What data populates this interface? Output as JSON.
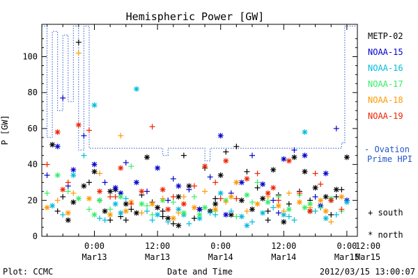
{
  "chart_data": {
    "type": "scatter",
    "title": "Hemispheric Power [GW]",
    "xlabel": "Date and Time",
    "ylabel": "P [GW]",
    "ylim": [
      0,
      118
    ],
    "xlim": [
      -10,
      50
    ],
    "x_unit": "hours relative to 2012-03-13 00:00 UT",
    "y_ticks": [
      0,
      20,
      40,
      60,
      80,
      100
    ],
    "x_ticks": [
      {
        "x": 0,
        "line1": "0:00",
        "line2": "Mar13"
      },
      {
        "x": 12,
        "line1": "12:00",
        "line2": "Mar13"
      },
      {
        "x": 24,
        "line1": "0:00",
        "line2": "Mar14"
      },
      {
        "x": 36,
        "line1": "12:00",
        "line2": "Mar14"
      },
      {
        "x": 48,
        "line1": "0:00",
        "line2": "Mar15"
      },
      {
        "x": 60,
        "line1": "12:00",
        "line2": "Mar15"
      }
    ],
    "grid": false,
    "legend_position": "right",
    "series": [
      {
        "name": "METP-02",
        "color": "#000000",
        "points": [
          [
            -8,
            51
          ],
          [
            -6,
            22
          ],
          [
            -5,
            9
          ],
          [
            -3,
            108
          ],
          [
            -2,
            28
          ],
          [
            -1,
            30
          ],
          [
            0,
            36
          ],
          [
            1,
            20
          ],
          [
            2,
            14
          ],
          [
            3,
            9
          ],
          [
            4,
            26
          ],
          [
            5,
            11
          ],
          [
            6,
            18
          ],
          [
            7,
            15
          ],
          [
            8,
            13
          ],
          [
            9,
            23
          ],
          [
            10,
            44
          ],
          [
            11,
            19
          ],
          [
            12,
            16
          ],
          [
            13,
            11
          ],
          [
            14,
            10
          ],
          [
            15,
            7
          ],
          [
            16,
            6
          ],
          [
            17,
            45
          ],
          [
            18,
            28
          ],
          [
            19,
            10
          ],
          [
            20,
            15
          ],
          [
            21,
            38
          ],
          [
            22,
            14
          ],
          [
            23,
            21
          ],
          [
            24,
            34
          ],
          [
            25,
            47
          ],
          [
            26,
            12
          ],
          [
            27,
            50
          ],
          [
            28,
            20
          ],
          [
            29,
            36
          ],
          [
            30,
            15
          ],
          [
            31,
            27
          ],
          [
            32,
            21
          ],
          [
            33,
            14
          ],
          [
            34,
            37
          ],
          [
            35,
            23
          ],
          [
            36,
            8
          ],
          [
            37,
            18
          ],
          [
            38,
            44
          ],
          [
            39,
            25
          ],
          [
            40,
            36
          ],
          [
            41,
            20
          ],
          [
            42,
            27
          ],
          [
            43,
            16
          ],
          [
            44,
            22
          ],
          [
            45,
            12
          ],
          [
            46,
            26
          ],
          [
            47,
            26
          ],
          [
            48,
            44
          ],
          [
            -7,
            14
          ],
          [
            3,
            25
          ],
          [
            13,
            14
          ],
          [
            23,
            18
          ],
          [
            33,
            9
          ],
          [
            41,
            14
          ],
          [
            46,
            22
          ],
          [
            -4,
            19
          ],
          [
            6,
            9
          ],
          [
            16,
            22
          ]
        ]
      },
      {
        "name": "NOAA-15",
        "color": "#0000cc",
        "points": [
          [
            -9,
            34
          ],
          [
            -7,
            50
          ],
          [
            -6,
            77
          ],
          [
            -4,
            37
          ],
          [
            -2,
            56
          ],
          [
            0,
            40
          ],
          [
            2,
            30
          ],
          [
            4,
            27
          ],
          [
            6,
            41
          ],
          [
            8,
            30
          ],
          [
            10,
            25
          ],
          [
            12,
            38
          ],
          [
            14,
            20
          ],
          [
            16,
            28
          ],
          [
            18,
            26
          ],
          [
            20,
            15
          ],
          [
            22,
            33
          ],
          [
            24,
            56
          ],
          [
            26,
            24
          ],
          [
            28,
            30
          ],
          [
            30,
            45
          ],
          [
            32,
            29
          ],
          [
            34,
            20
          ],
          [
            36,
            43
          ],
          [
            38,
            48
          ],
          [
            40,
            45
          ],
          [
            42,
            22
          ],
          [
            44,
            35
          ],
          [
            46,
            60
          ],
          [
            48,
            20
          ],
          [
            -5,
            28
          ],
          [
            5,
            24
          ],
          [
            15,
            32
          ],
          [
            25,
            12
          ],
          [
            35,
            13
          ],
          [
            43,
            17
          ]
        ]
      },
      {
        "name": "NOAA-16",
        "color": "#00bbdd",
        "points": [
          [
            -8,
            17
          ],
          [
            -6,
            12
          ],
          [
            -4,
            34
          ],
          [
            -2,
            45
          ],
          [
            0,
            73
          ],
          [
            2,
            9
          ],
          [
            4,
            18
          ],
          [
            6,
            21
          ],
          [
            8,
            82
          ],
          [
            10,
            14
          ],
          [
            12,
            12
          ],
          [
            14,
            8
          ],
          [
            16,
            15
          ],
          [
            18,
            7
          ],
          [
            20,
            10
          ],
          [
            22,
            13
          ],
          [
            24,
            24
          ],
          [
            26,
            14
          ],
          [
            28,
            11
          ],
          [
            30,
            8
          ],
          [
            32,
            13
          ],
          [
            34,
            16
          ],
          [
            36,
            12
          ],
          [
            38,
            9
          ],
          [
            40,
            58
          ],
          [
            42,
            14
          ],
          [
            44,
            10
          ],
          [
            46,
            12
          ],
          [
            48,
            19
          ],
          [
            1,
            10
          ],
          [
            5,
            13
          ],
          [
            11,
            9
          ],
          [
            17,
            12
          ],
          [
            23,
            12
          ],
          [
            29,
            6
          ],
          [
            37,
            11
          ],
          [
            45,
            20
          ]
        ]
      },
      {
        "name": "NOAA-17",
        "color": "#33ee66",
        "points": [
          [
            -9,
            24
          ],
          [
            -7,
            34
          ],
          [
            -5,
            25
          ],
          [
            -3,
            21
          ],
          [
            -1,
            15
          ],
          [
            1,
            20
          ],
          [
            3,
            15
          ],
          [
            5,
            22
          ],
          [
            7,
            39
          ],
          [
            9,
            18
          ],
          [
            11,
            12
          ],
          [
            13,
            20
          ],
          [
            15,
            19
          ],
          [
            17,
            13
          ],
          [
            19,
            22
          ],
          [
            21,
            16
          ],
          [
            23,
            14
          ],
          [
            25,
            20
          ],
          [
            27,
            11
          ],
          [
            29,
            23
          ],
          [
            31,
            30
          ],
          [
            33,
            19
          ],
          [
            35,
            22
          ],
          [
            37,
            15
          ],
          [
            39,
            23
          ],
          [
            41,
            18
          ],
          [
            43,
            16
          ],
          [
            45,
            21
          ],
          [
            47,
            14
          ],
          [
            0,
            12
          ],
          [
            10,
            17
          ],
          [
            20,
            12
          ],
          [
            30,
            19
          ],
          [
            40,
            16
          ]
        ]
      },
      {
        "name": "NOAA-18",
        "color": "#ff9900",
        "points": [
          [
            -9,
            16
          ],
          [
            -7,
            20
          ],
          [
            -5,
            13
          ],
          [
            -3,
            102
          ],
          [
            -1,
            21
          ],
          [
            1,
            35
          ],
          [
            3,
            12
          ],
          [
            5,
            56
          ],
          [
            7,
            19
          ],
          [
            9,
            13
          ],
          [
            11,
            18
          ],
          [
            13,
            21
          ],
          [
            15,
            10
          ],
          [
            17,
            22
          ],
          [
            19,
            16
          ],
          [
            21,
            25
          ],
          [
            23,
            15
          ],
          [
            25,
            19
          ],
          [
            27,
            30
          ],
          [
            29,
            14
          ],
          [
            31,
            18
          ],
          [
            33,
            22
          ],
          [
            35,
            17
          ],
          [
            37,
            24
          ],
          [
            39,
            19
          ],
          [
            41,
            16
          ],
          [
            43,
            20
          ],
          [
            45,
            8
          ],
          [
            47,
            22
          ],
          [
            -4,
            24
          ],
          [
            6,
            14
          ],
          [
            16,
            13
          ],
          [
            26,
            22
          ],
          [
            36,
            14
          ],
          [
            44,
            14
          ]
        ]
      },
      {
        "name": "NOAA-19",
        "color": "#ee2200",
        "points": [
          [
            -9,
            40
          ],
          [
            -7,
            58
          ],
          [
            -5,
            30
          ],
          [
            -3,
            62
          ],
          [
            -1,
            59
          ],
          [
            1,
            25
          ],
          [
            3,
            22
          ],
          [
            5,
            38
          ],
          [
            7,
            18
          ],
          [
            9,
            25
          ],
          [
            11,
            61
          ],
          [
            13,
            26
          ],
          [
            15,
            22
          ],
          [
            17,
            18
          ],
          [
            19,
            28
          ],
          [
            21,
            39
          ],
          [
            23,
            30
          ],
          [
            25,
            42
          ],
          [
            27,
            21
          ],
          [
            29,
            32
          ],
          [
            31,
            35
          ],
          [
            33,
            24
          ],
          [
            35,
            20
          ],
          [
            37,
            42
          ],
          [
            39,
            24
          ],
          [
            41,
            14
          ],
          [
            43,
            29
          ],
          [
            45,
            20
          ],
          [
            47,
            15
          ],
          [
            -6,
            26
          ],
          [
            4,
            22
          ],
          [
            14,
            15
          ],
          [
            24,
            21
          ],
          [
            34,
            27
          ],
          [
            42,
            35
          ]
        ]
      }
    ],
    "ovation": {
      "name": "- Ovation Prime HPI",
      "color": "#2255cc",
      "steps": [
        [
          -10,
          117
        ],
        [
          -9,
          117
        ],
        [
          -9,
          55
        ],
        [
          -8,
          55
        ],
        [
          -8,
          114
        ],
        [
          -7,
          114
        ],
        [
          -7,
          70
        ],
        [
          -6,
          70
        ],
        [
          -6,
          112
        ],
        [
          -5,
          112
        ],
        [
          -5,
          75
        ],
        [
          -4,
          75
        ],
        [
          -4,
          117
        ],
        [
          -3,
          117
        ],
        [
          -3,
          48
        ],
        [
          -2,
          48
        ],
        [
          -2,
          117
        ],
        [
          -1,
          117
        ],
        [
          -1,
          49
        ],
        [
          13,
          49
        ],
        [
          13,
          45
        ],
        [
          14,
          45
        ],
        [
          14,
          49
        ],
        [
          21,
          49
        ],
        [
          21,
          42
        ],
        [
          22,
          42
        ],
        [
          22,
          49
        ],
        [
          47,
          49
        ],
        [
          47,
          52
        ],
        [
          47.6,
          52
        ],
        [
          47.6,
          117
        ],
        [
          49.5,
          117
        ],
        [
          49.5,
          117
        ],
        [
          50,
          117
        ]
      ]
    },
    "annotations": {
      "legend_south": "+ south",
      "legend_north": "* north",
      "plot_credit": "Plot: CCMC",
      "timestamp": "2012/03/15 13:00:07"
    }
  }
}
